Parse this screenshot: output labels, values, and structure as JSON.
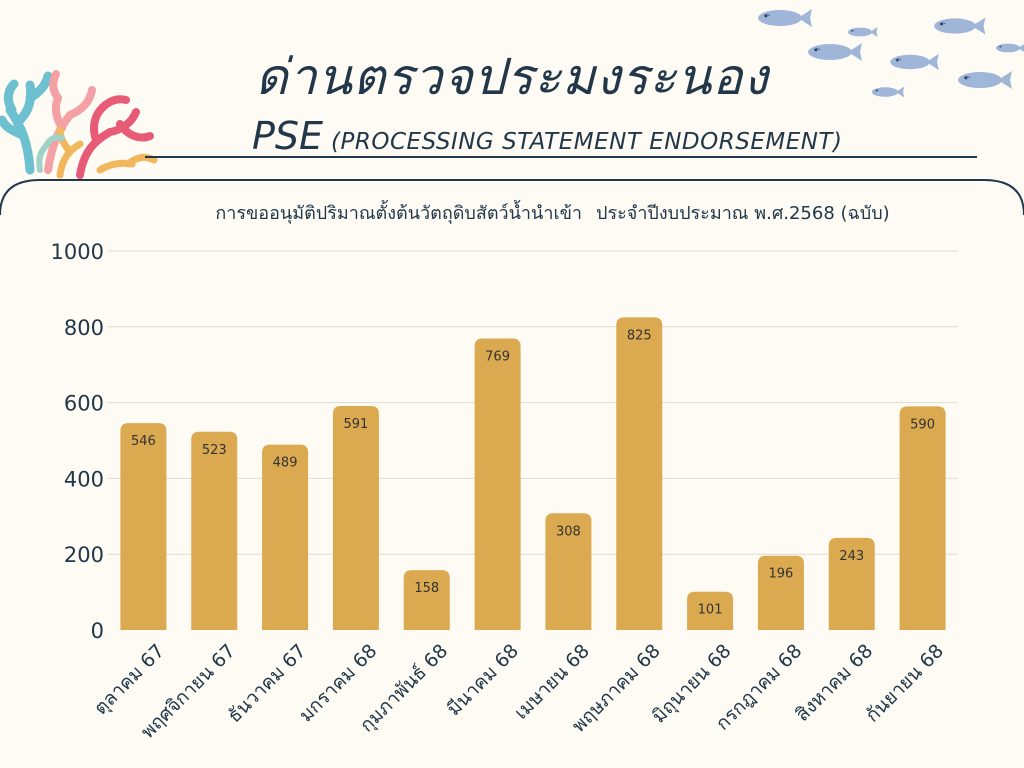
{
  "header": {
    "title": "ด่านตรวจประมงระนอง",
    "abbr": "PSE",
    "full_name": "(PROCESSING STATEMENT ENDORSEMENT)"
  },
  "colors": {
    "background": "#fdfbf3",
    "bar": "#dba94f",
    "text": "#22384a",
    "gridline": "#dddbd2",
    "data_label": "#333333"
  },
  "decorations": {
    "coral_icon": "coral-icon",
    "fish_icon": "fish-icon"
  },
  "chart_data": {
    "type": "bar",
    "title": "การขออนุมัติปริมาณตั้งต้นวัตถุดิบสัตว์น้ำนำเข้า",
    "subtitle": "ประจำปีงบประมาณ พ.ศ.2568 (ฉบับ)",
    "categories": [
      "ตุลาคม 67",
      "พฤศจิกายน 67",
      "ธันวาคม 67",
      "มกราคม 68",
      "กุมภาพันธ์ 68",
      "มีนาคม 68",
      "เมษายน 68",
      "พฤษภาคม 68",
      "มิถุนายน 68",
      "กรกฎาคม 68",
      "สิงหาคม 68",
      "กันยายน 68"
    ],
    "values": [
      546,
      523,
      489,
      591,
      158,
      769,
      308,
      825,
      101,
      196,
      243,
      590
    ],
    "ylim": [
      0,
      1000
    ],
    "yticks": [
      "0",
      "200",
      "400",
      "600",
      "800",
      "1000"
    ],
    "grid": true,
    "data_labels": true,
    "legend": "none"
  }
}
